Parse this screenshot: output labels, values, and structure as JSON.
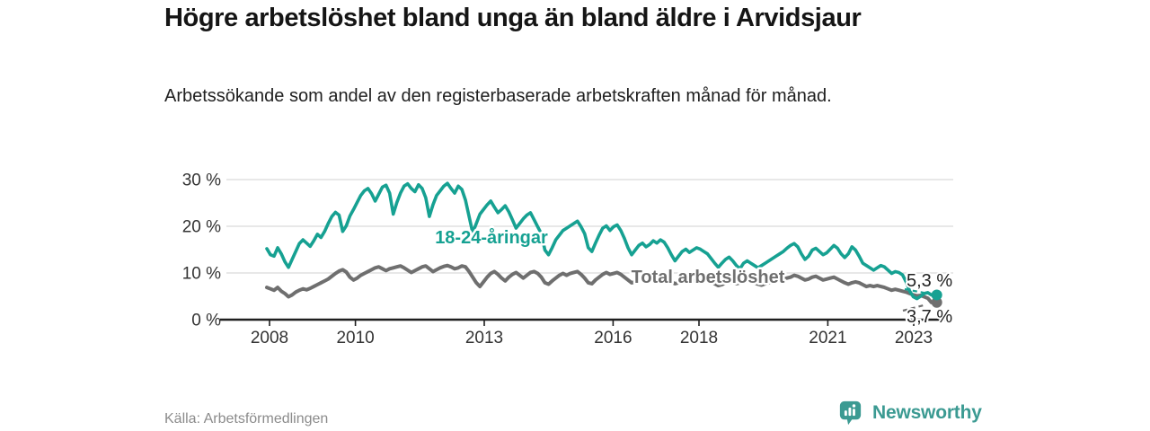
{
  "header": {
    "title": "Högre arbetslöshet bland unga än bland äldre i Arvidsjaur",
    "subtitle": "Arbetssökande som andel av den registerbaserade arbetskraften månad för månad."
  },
  "chart_data": {
    "type": "line",
    "title": "Högre arbetslöshet bland unga än bland äldre i Arvidsjaur",
    "x_start": {
      "year": 2008,
      "month": 1
    },
    "frequency": "monthly",
    "x_end": {
      "year": 2023,
      "month": 5
    },
    "ylim": [
      0,
      32
    ],
    "grid": "horizontal",
    "legend_position": "inline-labels",
    "yticks": [
      {
        "value": 0,
        "label": "0 %"
      },
      {
        "value": 10,
        "label": "10 %"
      },
      {
        "value": 20,
        "label": "20 %"
      },
      {
        "value": 30,
        "label": "30 %"
      }
    ],
    "xticks": [
      {
        "year": 2008,
        "label": "2008"
      },
      {
        "year": 2010,
        "label": "2010"
      },
      {
        "year": 2013,
        "label": "2013"
      },
      {
        "year": 2016,
        "label": "2016"
      },
      {
        "year": 2018,
        "label": "2018"
      },
      {
        "year": 2021,
        "label": "2021"
      },
      {
        "year": 2023,
        "label": "2023"
      }
    ],
    "series": [
      {
        "name": "18-24-åringar",
        "inline_label": "18-24-åringar",
        "color": "#16a192",
        "end_label": "5,3 %",
        "last_value": 5.3,
        "values": [
          15.2,
          13.9,
          13.6,
          15.4,
          14.1,
          12.4,
          11.2,
          12.9,
          14.6,
          16.3,
          17.1,
          16.4,
          15.7,
          16.9,
          18.3,
          17.6,
          18.9,
          20.6,
          22.1,
          23.0,
          22.4,
          18.9,
          20.1,
          22.2,
          23.6,
          25.1,
          26.6,
          27.6,
          28.1,
          27.0,
          25.4,
          26.9,
          28.4,
          28.8,
          27.1,
          22.6,
          25.1,
          27.1,
          28.6,
          29.1,
          28.1,
          27.4,
          28.9,
          28.1,
          26.1,
          22.1,
          24.6,
          26.6,
          27.6,
          28.6,
          29.2,
          28.1,
          27.1,
          28.6,
          27.9,
          25.6,
          22.1,
          18.6,
          20.6,
          22.6,
          23.6,
          24.6,
          25.4,
          24.1,
          22.9,
          23.6,
          24.4,
          23.1,
          21.4,
          19.6,
          20.6,
          21.6,
          22.4,
          22.9,
          21.4,
          19.9,
          18.4,
          14.9,
          13.9,
          15.4,
          17.1,
          18.1,
          19.1,
          19.6,
          20.1,
          20.6,
          21.1,
          19.9,
          18.4,
          15.4,
          14.6,
          16.4,
          18.1,
          19.6,
          20.1,
          19.1,
          19.9,
          20.3,
          19.1,
          17.4,
          15.4,
          13.9,
          14.9,
          15.9,
          16.4,
          15.6,
          16.1,
          16.9,
          16.4,
          17.1,
          16.6,
          15.4,
          13.9,
          12.6,
          13.6,
          14.6,
          15.1,
          14.4,
          14.9,
          15.4,
          15.1,
          14.6,
          14.1,
          13.1,
          12.1,
          11.2,
          12.1,
          12.9,
          13.4,
          12.6,
          11.6,
          10.9,
          12.1,
          12.6,
          12.1,
          11.6,
          11.1,
          11.6,
          12.1,
          12.6,
          13.1,
          13.6,
          14.1,
          14.6,
          15.3,
          15.9,
          16.3,
          15.6,
          14.1,
          12.9,
          13.6,
          14.9,
          15.3,
          14.6,
          13.9,
          14.3,
          15.1,
          15.9,
          15.3,
          14.1,
          13.3,
          14.1,
          15.6,
          14.9,
          13.6,
          12.1,
          11.6,
          11.1,
          10.6,
          11.1,
          11.6,
          11.3,
          10.6,
          9.9,
          10.3,
          10.1,
          9.6,
          8.1,
          6.1,
          4.9,
          4.5,
          5.0,
          5.6,
          5.8,
          5.3
        ]
      },
      {
        "name": "Total arbetslöshet",
        "inline_label": "Total arbetslöshet",
        "color": "#6f6f6f",
        "end_label": "3,7 %",
        "last_value": 3.7,
        "values": [
          6.9,
          6.6,
          6.3,
          6.9,
          6.1,
          5.6,
          4.9,
          5.3,
          5.9,
          6.3,
          6.6,
          6.4,
          6.7,
          7.1,
          7.5,
          7.9,
          8.3,
          8.7,
          9.3,
          9.9,
          10.4,
          10.7,
          10.2,
          9.1,
          8.5,
          8.9,
          9.5,
          9.9,
          10.3,
          10.7,
          11.1,
          11.3,
          10.9,
          10.5,
          10.9,
          11.1,
          11.3,
          11.5,
          11.1,
          10.6,
          10.1,
          10.5,
          10.9,
          11.3,
          11.5,
          10.9,
          10.3,
          10.7,
          11.1,
          11.4,
          11.6,
          11.3,
          10.9,
          11.1,
          11.5,
          11.3,
          10.3,
          9.1,
          7.9,
          7.1,
          8.1,
          9.1,
          9.9,
          10.3,
          9.7,
          8.9,
          8.3,
          9.1,
          9.7,
          10.1,
          9.5,
          8.9,
          9.5,
          10.1,
          10.3,
          9.9,
          9.1,
          7.9,
          7.6,
          8.3,
          8.9,
          9.5,
          9.9,
          9.5,
          9.9,
          10.1,
          10.3,
          9.7,
          8.9,
          7.9,
          7.7,
          8.5,
          9.1,
          9.7,
          10.1,
          9.7,
          9.9,
          10.1,
          9.7,
          9.1,
          8.5,
          7.9,
          8.1,
          8.7,
          9.1,
          8.9,
          9.1,
          9.3,
          9.3,
          9.5,
          9.1,
          8.7,
          8.1,
          7.7,
          7.9,
          8.3,
          8.7,
          8.5,
          8.3,
          8.5,
          8.7,
          8.9,
          8.5,
          8.1,
          7.7,
          7.3,
          7.5,
          7.9,
          8.1,
          7.9,
          7.7,
          7.9,
          8.1,
          8.3,
          8.1,
          7.9,
          7.6,
          7.4,
          7.7,
          7.9,
          8.1,
          8.3,
          8.5,
          8.7,
          8.9,
          9.1,
          9.5,
          9.3,
          8.9,
          8.5,
          8.7,
          9.1,
          9.3,
          8.9,
          8.5,
          8.7,
          8.9,
          9.1,
          8.7,
          8.3,
          7.9,
          7.6,
          7.9,
          8.1,
          7.9,
          7.5,
          7.1,
          7.3,
          7.1,
          7.3,
          7.1,
          6.9,
          6.6,
          6.3,
          6.5,
          6.3,
          6.1,
          5.9,
          5.6,
          5.3,
          5.1,
          5.2,
          4.9,
          4.6,
          3.7
        ]
      }
    ]
  },
  "footer": {
    "source": "Källa: Arbetsförmedlingen",
    "brand": "Newsworthy"
  },
  "colors": {
    "accent_teal": "#16a192",
    "line_gray": "#6f6f6f",
    "grid": "#dadada",
    "axis": "#1f1f1f",
    "tick_text": "#333333",
    "end_label_text": "#222222",
    "brand_teal": "#3b9a92"
  }
}
